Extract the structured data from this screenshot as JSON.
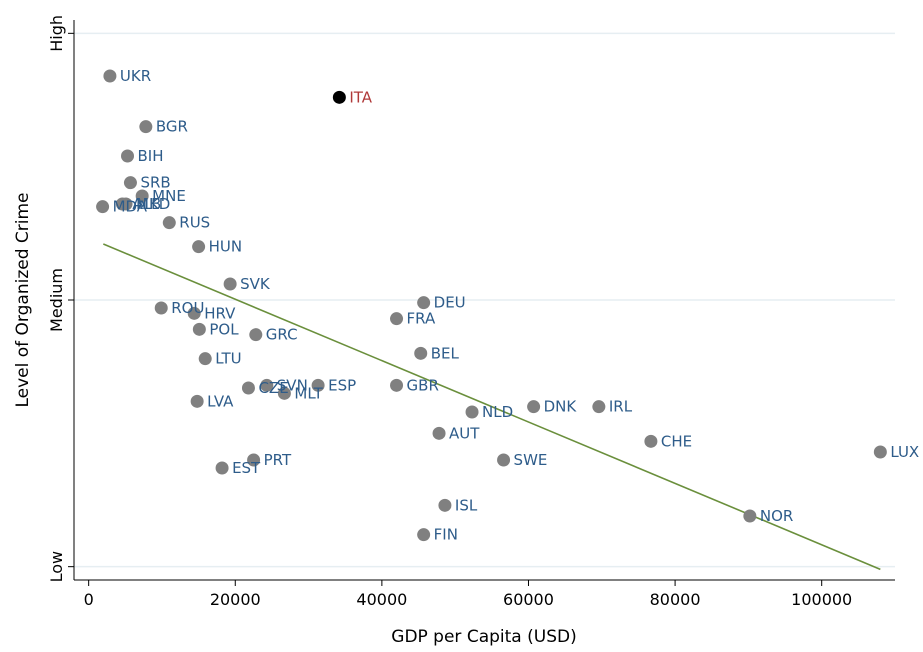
{
  "chart_data": {
    "type": "scatter",
    "title": "",
    "xlabel": "GDP per Capita (USD)",
    "ylabel": "Level of Organized Crime",
    "xlim": [
      -2000,
      110000
    ],
    "ylim": [
      0.95,
      3.05
    ],
    "x_ticks": [
      {
        "value": 0,
        "label": "0"
      },
      {
        "value": 20000,
        "label": "20000"
      },
      {
        "value": 40000,
        "label": "40000"
      },
      {
        "value": 60000,
        "label": "60000"
      },
      {
        "value": 80000,
        "label": "80000"
      },
      {
        "value": 100000,
        "label": "100000"
      }
    ],
    "y_ticks": [
      {
        "value": 1,
        "label": "Low"
      },
      {
        "value": 2,
        "label": "Medium"
      },
      {
        "value": 3,
        "label": "High"
      }
    ],
    "grid": "horizontal",
    "colors": {
      "point": "#808080",
      "label": "#2e5c8a",
      "highlight_point": "#000000",
      "highlight_label": "#b03a3a",
      "fit_line": "#6a8f3c",
      "grid": "#e6eef2"
    },
    "fit_line": {
      "x": [
        2000,
        108000
      ],
      "y": [
        2.21,
        0.99
      ]
    },
    "points": [
      {
        "label": "UKR",
        "x": 2900,
        "y": 2.84
      },
      {
        "label": "ITA",
        "x": 34200,
        "y": 2.76,
        "highlight": true
      },
      {
        "label": "BGR",
        "x": 7800,
        "y": 2.65
      },
      {
        "label": "BIH",
        "x": 5300,
        "y": 2.54
      },
      {
        "label": "SRB",
        "x": 5700,
        "y": 2.44
      },
      {
        "label": "MNE",
        "x": 7300,
        "y": 2.39
      },
      {
        "label": "MKD",
        "x": 5100,
        "y": 2.36
      },
      {
        "label": "MDA",
        "x": 1900,
        "y": 2.35
      },
      {
        "label": "ALB",
        "x": 4600,
        "y": 2.36
      },
      {
        "label": "RUS",
        "x": 11000,
        "y": 2.29
      },
      {
        "label": "HUN",
        "x": 15000,
        "y": 2.2
      },
      {
        "label": "SVK",
        "x": 19300,
        "y": 2.06
      },
      {
        "label": "ROU",
        "x": 9900,
        "y": 1.97
      },
      {
        "label": "HRV",
        "x": 14400,
        "y": 1.95
      },
      {
        "label": "POL",
        "x": 15100,
        "y": 1.89
      },
      {
        "label": "GRC",
        "x": 22800,
        "y": 1.87
      },
      {
        "label": "LTU",
        "x": 15900,
        "y": 1.78
      },
      {
        "label": "CZE",
        "x": 21800,
        "y": 1.67
      },
      {
        "label": "SVN",
        "x": 24300,
        "y": 1.68
      },
      {
        "label": "MLT",
        "x": 26700,
        "y": 1.65
      },
      {
        "label": "ESP",
        "x": 31300,
        "y": 1.68
      },
      {
        "label": "LVA",
        "x": 14800,
        "y": 1.62
      },
      {
        "label": "EST",
        "x": 18200,
        "y": 1.37
      },
      {
        "label": "PRT",
        "x": 22500,
        "y": 1.4
      },
      {
        "label": "DEU",
        "x": 45700,
        "y": 1.99
      },
      {
        "label": "FRA",
        "x": 42000,
        "y": 1.93
      },
      {
        "label": "BEL",
        "x": 45300,
        "y": 1.8
      },
      {
        "label": "GBR",
        "x": 42000,
        "y": 1.68
      },
      {
        "label": "NLD",
        "x": 52300,
        "y": 1.58
      },
      {
        "label": "DNK",
        "x": 60700,
        "y": 1.6
      },
      {
        "label": "IRL",
        "x": 69600,
        "y": 1.6
      },
      {
        "label": "AUT",
        "x": 47800,
        "y": 1.5
      },
      {
        "label": "CHE",
        "x": 76700,
        "y": 1.47
      },
      {
        "label": "SWE",
        "x": 56600,
        "y": 1.4
      },
      {
        "label": "LUX",
        "x": 108000,
        "y": 1.43
      },
      {
        "label": "ISL",
        "x": 48600,
        "y": 1.23
      },
      {
        "label": "NOR",
        "x": 90200,
        "y": 1.19
      },
      {
        "label": "FIN",
        "x": 45700,
        "y": 1.12
      }
    ]
  }
}
